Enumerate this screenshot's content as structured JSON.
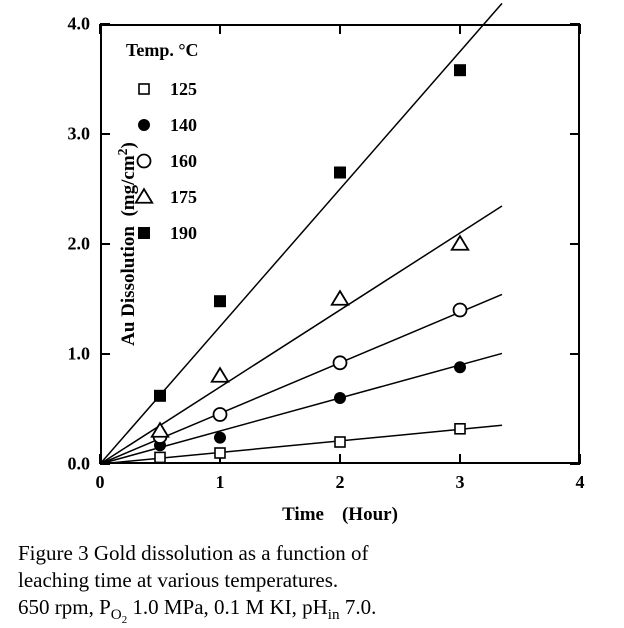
{
  "chart": {
    "type": "scatter+line",
    "background_color": "#ffffff",
    "frame_color": "#000000",
    "frame_width": 2,
    "x_axis": {
      "title_a": "Time",
      "title_b": "(Hour)",
      "min": 0,
      "max": 4,
      "ticks": [
        0,
        1,
        2,
        3,
        4
      ],
      "tick_labels": [
        "0",
        "1",
        "2",
        "3",
        "4"
      ],
      "tick_fontsize": 18,
      "title_fontsize": 19
    },
    "y_axis": {
      "title": "Au Dissolution  (mg/cm²)",
      "title_html_sup": "2",
      "min": 0,
      "max": 4,
      "ticks": [
        0,
        1,
        2,
        3,
        4
      ],
      "tick_labels": [
        "0.0",
        "1.0",
        "2.0",
        "3.0",
        "4.0"
      ],
      "tick_fontsize": 18,
      "title_fontsize": 19
    },
    "legend": {
      "title": "Temp.  °C",
      "entries": [
        {
          "marker": "open-square",
          "label": "125",
          "series_key": "t125"
        },
        {
          "marker": "filled-circle",
          "label": "140",
          "series_key": "t140"
        },
        {
          "marker": "open-circle",
          "label": "160",
          "series_key": "t160"
        },
        {
          "marker": "open-triangle",
          "label": "175",
          "series_key": "t175"
        },
        {
          "marker": "filled-square",
          "label": "190",
          "series_key": "t190"
        }
      ]
    },
    "series": {
      "t125": {
        "marker": "open-square",
        "color": "#000000",
        "marker_size": 10,
        "line_slope": 0.105,
        "points": [
          [
            0.5,
            0.06
          ],
          [
            1,
            0.1
          ],
          [
            2,
            0.2
          ],
          [
            3,
            0.32
          ]
        ]
      },
      "t140": {
        "marker": "filled-circle",
        "color": "#000000",
        "marker_size": 12,
        "line_slope": 0.3,
        "points": [
          [
            0.5,
            0.17
          ],
          [
            1,
            0.24
          ],
          [
            2,
            0.6
          ],
          [
            3,
            0.88
          ]
        ]
      },
      "t160": {
        "marker": "open-circle",
        "color": "#000000",
        "marker_size": 13,
        "line_slope": 0.46,
        "points": [
          [
            0.5,
            0.25
          ],
          [
            1,
            0.45
          ],
          [
            2,
            0.92
          ],
          [
            3,
            1.4
          ]
        ]
      },
      "t175": {
        "marker": "open-triangle",
        "color": "#000000",
        "marker_size": 14,
        "line_slope": 0.7,
        "points": [
          [
            0.5,
            0.3
          ],
          [
            1,
            0.8
          ],
          [
            2,
            1.5
          ],
          [
            3,
            2.0
          ]
        ]
      },
      "t190": {
        "marker": "filled-square",
        "color": "#000000",
        "marker_size": 12,
        "line_slope": 1.25,
        "points": [
          [
            0.5,
            0.62
          ],
          [
            1,
            1.48
          ],
          [
            2,
            2.65
          ],
          [
            3,
            3.58
          ]
        ]
      }
    },
    "trend_lines": {
      "from_x": 0,
      "to_x": 3.35,
      "stroke_width": 1.5,
      "color": "#000000"
    }
  },
  "caption": {
    "line1": "Figure 3 Gold  dissolution  as  a  function  of",
    "line2": "leaching  time  at  various  temperatures.",
    "line3_prefix": "650 rpm, ",
    "line3_P": "P",
    "line3_O2_sub": "O",
    "line3_O2_sub2": "2",
    "line3_mid": " 1.0 MPa, 0.1 M KI, pH",
    "line3_in": "in",
    "line3_suffix": " 7.0."
  }
}
